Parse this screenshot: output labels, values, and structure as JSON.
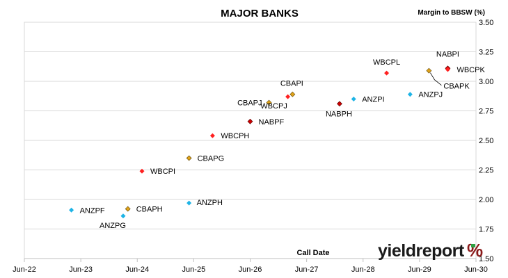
{
  "chart_data": {
    "type": "scatter",
    "title": "MAJOR BANKS",
    "ylabel": "Margin to BBSW (%)",
    "xlabel": "Call Date",
    "x_ticks": [
      "Jun-22",
      "Jun-23",
      "Jun-24",
      "Jun-25",
      "Jun-26",
      "Jun-27",
      "Jun-28",
      "Jun-29",
      "Jun-30"
    ],
    "xlim": [
      "2022-06",
      "2030-06"
    ],
    "ylim": [
      1.5,
      3.5
    ],
    "y_ticks": [
      "1.50",
      "1.75",
      "2.00",
      "2.25",
      "2.50",
      "2.75",
      "3.00",
      "3.25",
      "3.50"
    ],
    "y_axis_side": "right",
    "grid": "horizontal",
    "colors": {
      "ANZ": "#1eb4e6",
      "CBA": "#e0a31a",
      "WBC": "#ff2020",
      "NAB": "#cc0000"
    },
    "points": [
      {
        "label": "ANZPF",
        "bank": "ANZ",
        "x": "2023-04",
        "y": 1.91
      },
      {
        "label": "ANZPG",
        "bank": "ANZ",
        "x": "2024-03",
        "y": 1.86
      },
      {
        "label": "CBAPH",
        "bank": "CBA",
        "x": "2024-04",
        "y": 1.92
      },
      {
        "label": "WBCPI",
        "bank": "WBC",
        "x": "2024-07",
        "y": 2.24
      },
      {
        "label": "ANZPH",
        "bank": "ANZ",
        "x": "2025-05",
        "y": 1.97
      },
      {
        "label": "CBAPG",
        "bank": "CBA",
        "x": "2025-05",
        "y": 2.35
      },
      {
        "label": "WBCPH",
        "bank": "WBC",
        "x": "2025-10",
        "y": 2.54
      },
      {
        "label": "NABPF",
        "bank": "NAB",
        "x": "2026-06",
        "y": 2.66
      },
      {
        "label": "CBAPJ",
        "bank": "CBA",
        "x": "2026-10",
        "y": 2.82
      },
      {
        "label": "WBCPJ",
        "bank": "WBC",
        "x": "2027-02",
        "y": 2.87
      },
      {
        "label": "CBAPI",
        "bank": "CBA",
        "x": "2027-03",
        "y": 2.89
      },
      {
        "label": "NABPH",
        "bank": "NAB",
        "x": "2028-01",
        "y": 2.81
      },
      {
        "label": "ANZPI",
        "bank": "ANZ",
        "x": "2028-04",
        "y": 2.85
      },
      {
        "label": "WBCPL",
        "bank": "WBC",
        "x": "2028-11",
        "y": 3.07
      },
      {
        "label": "ANZPJ",
        "bank": "ANZ",
        "x": "2029-04",
        "y": 2.89
      },
      {
        "label": "CBAPK",
        "bank": "CBA",
        "x": "2029-08",
        "y": 3.09
      },
      {
        "label": "NABPI",
        "bank": "NAB",
        "x": "2029-12",
        "y": 3.11
      },
      {
        "label": "WBCPK",
        "bank": "WBC",
        "x": "2029-12",
        "y": 3.1
      }
    ]
  },
  "logo": {
    "text": "yieldreport",
    "symbol": "%"
  }
}
